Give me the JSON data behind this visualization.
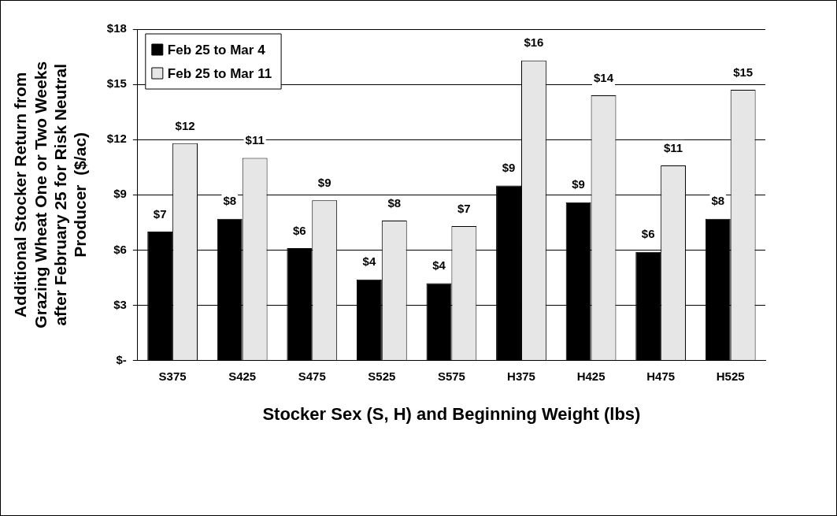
{
  "chart_data": {
    "type": "bar",
    "xlabel": "Stocker Sex (S, H) and Beginning Weight (lbs)",
    "ylabel": "Additional Stocker Return from Grazing Wheat One or Two Weeks after February 25 for Risk Neutral Producer  ($/ac)",
    "categories": [
      "S375",
      "S425",
      "S475",
      "S525",
      "S575",
      "H375",
      "H425",
      "H475",
      "H525"
    ],
    "series": [
      {
        "name": "Feb 25 to Mar 4",
        "color": "#000000",
        "values": [
          7.0,
          7.7,
          6.1,
          4.4,
          4.2,
          9.5,
          8.6,
          5.9,
          7.7
        ],
        "value_labels": [
          "$7",
          "$8",
          "$6",
          "$4",
          "$4",
          "$9",
          "$9",
          "$6",
          "$8"
        ]
      },
      {
        "name": "Feb 25 to Mar 11",
        "color": "#e6e6e6",
        "values": [
          11.8,
          11.0,
          8.7,
          7.6,
          7.3,
          16.3,
          14.4,
          10.6,
          14.7
        ],
        "value_labels": [
          "$12",
          "$11",
          "$9",
          "$8",
          "$7",
          "$16",
          "$14",
          "$11",
          "$15"
        ]
      }
    ],
    "ylim": [
      0,
      18
    ],
    "yticks": [
      {
        "value": 0,
        "label": "$-"
      },
      {
        "value": 3,
        "label": "$3"
      },
      {
        "value": 6,
        "label": "$6"
      },
      {
        "value": 9,
        "label": "$9"
      },
      {
        "value": 12,
        "label": "$12"
      },
      {
        "value": 15,
        "label": "$15"
      },
      {
        "value": 18,
        "label": "$18"
      }
    ],
    "grid": "y",
    "legend": "top left"
  }
}
